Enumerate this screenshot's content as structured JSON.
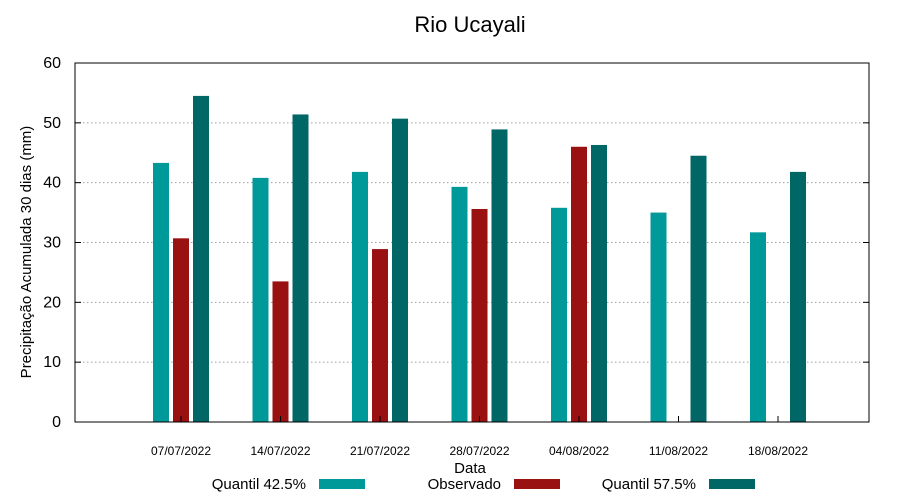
{
  "chart_data": {
    "type": "bar",
    "title": "Rio Ucayali",
    "xlabel": "Data",
    "ylabel": "Precipitação Acumulada 30 dias (mm)",
    "ylim": [
      0,
      60
    ],
    "yticks": [
      0,
      10,
      20,
      30,
      40,
      50,
      60
    ],
    "grid": true,
    "legend_position": "bottom",
    "categories": [
      "07/07/2022",
      "14/07/2022",
      "21/07/2022",
      "28/07/2022",
      "04/08/2022",
      "11/08/2022",
      "18/08/2022"
    ],
    "series": [
      {
        "name": "Quantil 42.5%",
        "color": "#009999",
        "values": [
          43.3,
          40.8,
          41.8,
          39.3,
          35.8,
          35.0,
          31.7
        ]
      },
      {
        "name": "Observado",
        "color": "#991111",
        "values": [
          30.7,
          23.5,
          28.9,
          35.6,
          46.0,
          null,
          null
        ]
      },
      {
        "name": "Quantil 57.5%",
        "color": "#006666",
        "values": [
          54.5,
          51.4,
          50.7,
          48.9,
          46.3,
          44.5,
          41.8
        ]
      }
    ]
  }
}
